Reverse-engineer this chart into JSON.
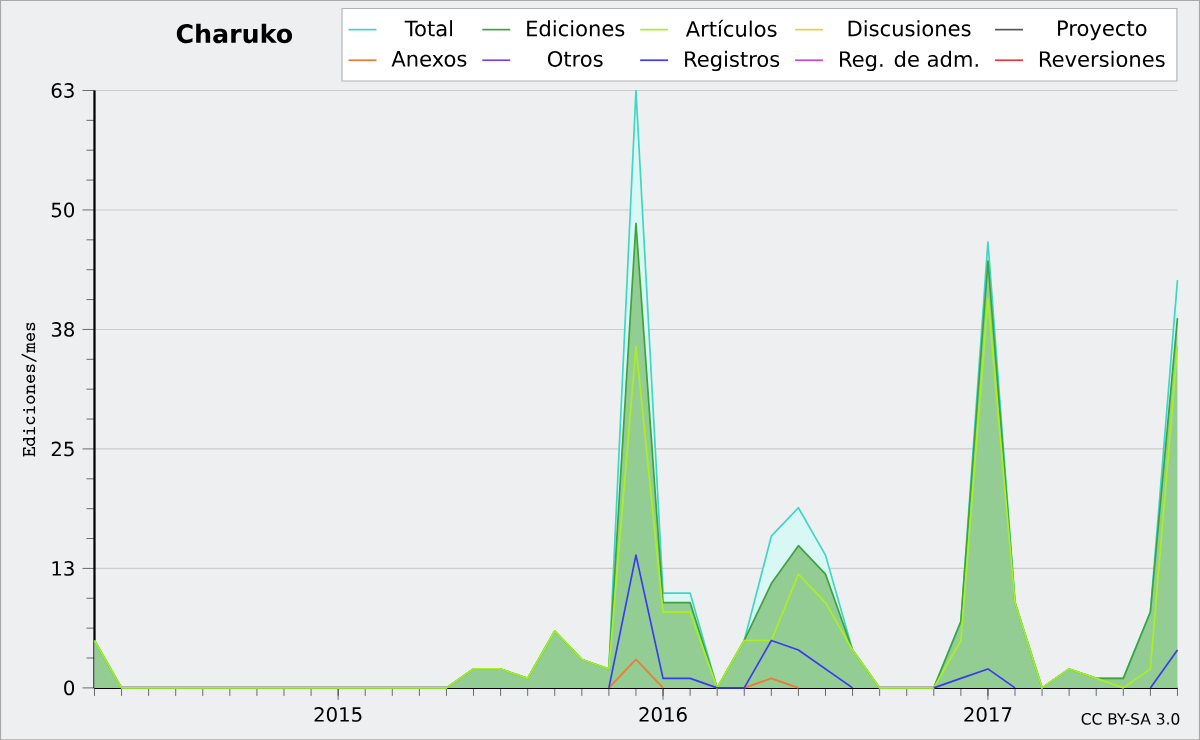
{
  "chart_data": {
    "type": "line",
    "title": "Charuko",
    "ylabel": "Ediciones/mes",
    "x": [
      "2014-04",
      "2014-05",
      "2014-06",
      "2014-07",
      "2014-08",
      "2014-09",
      "2014-10",
      "2014-11",
      "2014-12",
      "2015-01",
      "2015-02",
      "2015-03",
      "2015-04",
      "2015-05",
      "2015-06",
      "2015-07",
      "2015-08",
      "2015-09",
      "2015-10",
      "2015-11",
      "2015-12",
      "2016-01",
      "2016-02",
      "2016-03",
      "2016-04",
      "2016-05",
      "2016-06",
      "2016-07",
      "2016-08",
      "2016-09",
      "2016-10",
      "2016-11",
      "2016-12",
      "2017-01",
      "2017-02",
      "2017-03",
      "2017-04",
      "2017-05",
      "2017-06",
      "2017-07",
      "2017-08"
    ],
    "series": [
      {
        "name": "Total",
        "type": "area",
        "color": "#3fd6c6",
        "values": [
          5,
          0,
          0,
          0,
          0,
          0,
          0,
          0,
          0,
          0,
          0,
          0,
          0,
          0,
          2,
          2,
          1,
          6,
          3,
          2,
          63,
          10,
          10,
          0,
          5,
          16,
          19,
          14,
          4,
          0,
          0,
          0,
          7,
          47,
          9,
          0,
          2,
          1,
          1,
          8,
          43
        ]
      },
      {
        "name": "Ediciones",
        "type": "area",
        "color": "#3ca43c",
        "values": [
          5,
          0,
          0,
          0,
          0,
          0,
          0,
          0,
          0,
          0,
          0,
          0,
          0,
          0,
          2,
          2,
          1,
          6,
          3,
          2,
          49,
          9,
          9,
          0,
          5,
          11,
          15,
          12,
          4,
          0,
          0,
          0,
          7,
          45,
          9,
          0,
          2,
          1,
          1,
          8,
          39
        ]
      },
      {
        "name": "Artículos",
        "color": "#aaf020",
        "values": [
          5,
          0,
          0,
          0,
          0,
          0,
          0,
          0,
          0,
          0,
          0,
          0,
          0,
          0,
          2,
          2,
          1,
          6,
          3,
          2,
          36,
          8,
          8,
          0,
          5,
          5,
          12,
          9,
          4,
          0,
          0,
          0,
          5,
          41,
          9,
          0,
          2,
          1,
          0,
          2,
          36
        ]
      },
      {
        "name": "Discusiones",
        "color": "#f5c842",
        "values": [
          null,
          null,
          null,
          null,
          null,
          null,
          null,
          null,
          null,
          null,
          null,
          null,
          null,
          null,
          null,
          null,
          null,
          null,
          null,
          null,
          null,
          null,
          null,
          null,
          null,
          null,
          null,
          null,
          null,
          null,
          null,
          null,
          null,
          null,
          null,
          null,
          null,
          null,
          null,
          null,
          null
        ]
      },
      {
        "name": "Proyecto",
        "color": "#555555",
        "values": [
          null,
          null,
          null,
          null,
          null,
          null,
          null,
          null,
          null,
          null,
          null,
          null,
          null,
          null,
          null,
          null,
          null,
          null,
          null,
          null,
          null,
          null,
          null,
          null,
          null,
          null,
          null,
          null,
          null,
          null,
          null,
          null,
          null,
          null,
          null,
          null,
          null,
          null,
          null,
          null,
          null
        ]
      },
      {
        "name": "Anexos",
        "color": "#f07838",
        "values": [
          null,
          null,
          null,
          null,
          null,
          null,
          null,
          null,
          null,
          null,
          null,
          null,
          null,
          null,
          null,
          null,
          null,
          null,
          null,
          0,
          3,
          0,
          null,
          null,
          0,
          1,
          0,
          null,
          null,
          null,
          null,
          null,
          null,
          null,
          null,
          null,
          null,
          null,
          null,
          null,
          null
        ]
      },
      {
        "name": "Otros",
        "color": "#8040d8",
        "values": [
          null,
          null,
          null,
          null,
          null,
          null,
          null,
          null,
          null,
          null,
          null,
          null,
          null,
          null,
          null,
          null,
          null,
          null,
          null,
          null,
          null,
          null,
          null,
          null,
          null,
          null,
          null,
          null,
          null,
          null,
          null,
          null,
          null,
          null,
          null,
          null,
          null,
          null,
          null,
          null,
          null
        ]
      },
      {
        "name": "Registros",
        "color": "#3a3af0",
        "values": [
          null,
          null,
          null,
          null,
          null,
          null,
          null,
          null,
          null,
          null,
          null,
          null,
          null,
          null,
          null,
          null,
          null,
          null,
          null,
          0,
          14,
          1,
          1,
          0,
          0,
          5,
          4,
          2,
          0,
          null,
          null,
          0,
          1,
          2,
          0,
          null,
          null,
          null,
          null,
          0,
          4
        ]
      },
      {
        "name": "Reg. de adm.",
        "color": "#c848d8",
        "values": [
          null,
          null,
          null,
          null,
          null,
          null,
          null,
          null,
          null,
          null,
          null,
          null,
          null,
          null,
          null,
          null,
          null,
          null,
          null,
          null,
          null,
          null,
          null,
          null,
          null,
          null,
          null,
          null,
          null,
          null,
          null,
          null,
          null,
          null,
          null,
          null,
          null,
          null,
          null,
          null,
          null
        ]
      },
      {
        "name": "Reversiones",
        "color": "#e83838",
        "values": [
          null,
          null,
          null,
          null,
          null,
          null,
          null,
          null,
          null,
          null,
          null,
          null,
          null,
          null,
          null,
          null,
          null,
          null,
          null,
          null,
          null,
          null,
          null,
          null,
          null,
          null,
          null,
          null,
          null,
          null,
          null,
          null,
          null,
          null,
          null,
          null,
          null,
          null,
          null,
          null,
          null
        ]
      }
    ],
    "xlim": [
      "2014-04",
      "2017-08"
    ],
    "xticks": [
      {
        "value": "2015-01",
        "label": "2015"
      },
      {
        "value": "2016-01",
        "label": "2016"
      },
      {
        "value": "2017-01",
        "label": "2017"
      }
    ],
    "ylim": [
      0,
      63
    ],
    "yticks": [
      0,
      {
        "value": 12.6,
        "label": "13"
      },
      {
        "value": 25.2,
        "label": "25"
      },
      {
        "value": 37.8,
        "label": "38"
      },
      {
        "value": 50.4,
        "label": "50"
      },
      63
    ],
    "grid": "y",
    "legend": "top right",
    "marker": "none",
    "line_style": "solid",
    "annotations": [
      "CC BY-SA 3.0"
    ]
  }
}
